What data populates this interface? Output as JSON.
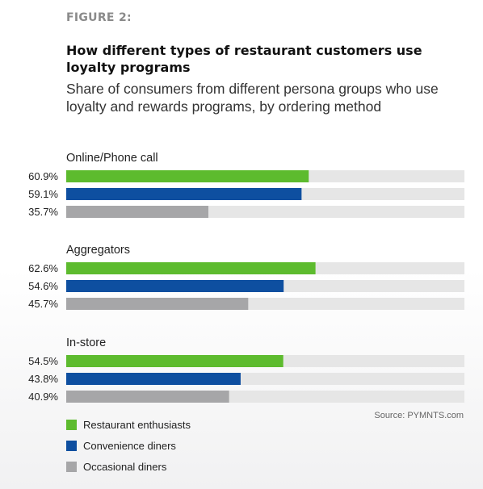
{
  "header": {
    "figure_label": "FIGURE 2:",
    "title": "How different types of restaurant customers use loyalty programs",
    "subtitle": "Share of consumers from different persona groups who use loyalty and rewards programs, by ordering method"
  },
  "chart_data": {
    "type": "bar",
    "orientation": "horizontal",
    "value_format": "percent",
    "xlim": [
      0,
      100
    ],
    "grid": false,
    "track_color": "#e6e6e6",
    "groups": [
      {
        "label": "Online/Phone call",
        "bars": [
          {
            "series": "Restaurant enthusiasts",
            "value": 60.9,
            "label": "60.9%"
          },
          {
            "series": "Convenience diners",
            "value": 59.1,
            "label": "59.1%"
          },
          {
            "series": "Occasional diners",
            "value": 35.7,
            "label": "35.7%"
          }
        ]
      },
      {
        "label": "Aggregators",
        "bars": [
          {
            "series": "Restaurant enthusiasts",
            "value": 62.6,
            "label": "62.6%"
          },
          {
            "series": "Convenience diners",
            "value": 54.6,
            "label": "54.6%"
          },
          {
            "series": "Occasional diners",
            "value": 45.7,
            "label": "45.7%"
          }
        ]
      },
      {
        "label": "In-store",
        "bars": [
          {
            "series": "Restaurant enthusiasts",
            "value": 54.5,
            "label": "54.5%"
          },
          {
            "series": "Convenience diners",
            "value": 43.8,
            "label": "43.8%"
          },
          {
            "series": "Occasional diners",
            "value": 40.9,
            "label": "40.9%"
          }
        ]
      }
    ],
    "series": [
      {
        "name": "Restaurant enthusiasts",
        "color": "#5dbb2e"
      },
      {
        "name": "Convenience diners",
        "color": "#0e4fa0"
      },
      {
        "name": "Occasional diners",
        "color": "#a6a6a8"
      }
    ],
    "legend_placement": "bottom-left"
  },
  "footer": {
    "source": "Source: PYMNTS.com"
  }
}
